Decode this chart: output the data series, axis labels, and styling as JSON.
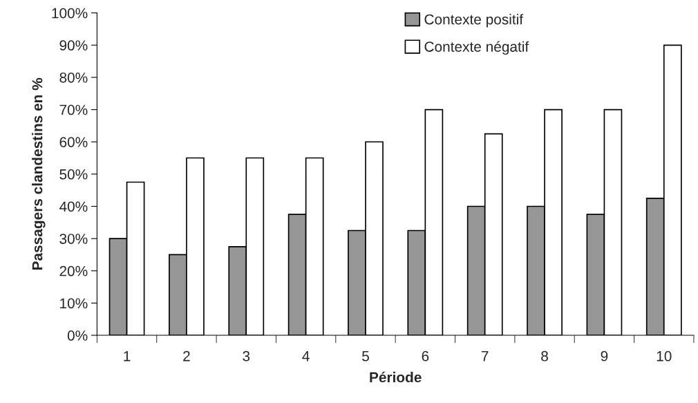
{
  "chart_data": {
    "type": "bar",
    "xlabel": "Période",
    "ylabel": "Passagers clandestins en %",
    "categories": [
      "1",
      "2",
      "3",
      "4",
      "5",
      "6",
      "7",
      "8",
      "9",
      "10"
    ],
    "series": [
      {
        "name": "Contexte positif",
        "color": "#969696",
        "values": [
          30,
          25,
          27.5,
          37.5,
          32.5,
          32.5,
          40,
          40,
          37.5,
          42.5
        ]
      },
      {
        "name": "Contexte négatif",
        "color": "#ffffff",
        "values": [
          47.5,
          55,
          55,
          55,
          60,
          70,
          62.5,
          70,
          70,
          90
        ]
      }
    ],
    "ylim": [
      0,
      100
    ],
    "yticks": [
      {
        "value": 0,
        "label": "0%"
      },
      {
        "value": 10,
        "label": "10%"
      },
      {
        "value": 20,
        "label": "20%"
      },
      {
        "value": 30,
        "label": "30%"
      },
      {
        "value": 40,
        "label": "40%"
      },
      {
        "value": 50,
        "label": "50%"
      },
      {
        "value": 60,
        "label": "60%"
      },
      {
        "value": 70,
        "label": "70%"
      },
      {
        "value": 80,
        "label": "80%"
      },
      {
        "value": 90,
        "label": "90%"
      },
      {
        "value": 100,
        "label": "100%"
      }
    ],
    "grid": false,
    "legend": "top"
  }
}
